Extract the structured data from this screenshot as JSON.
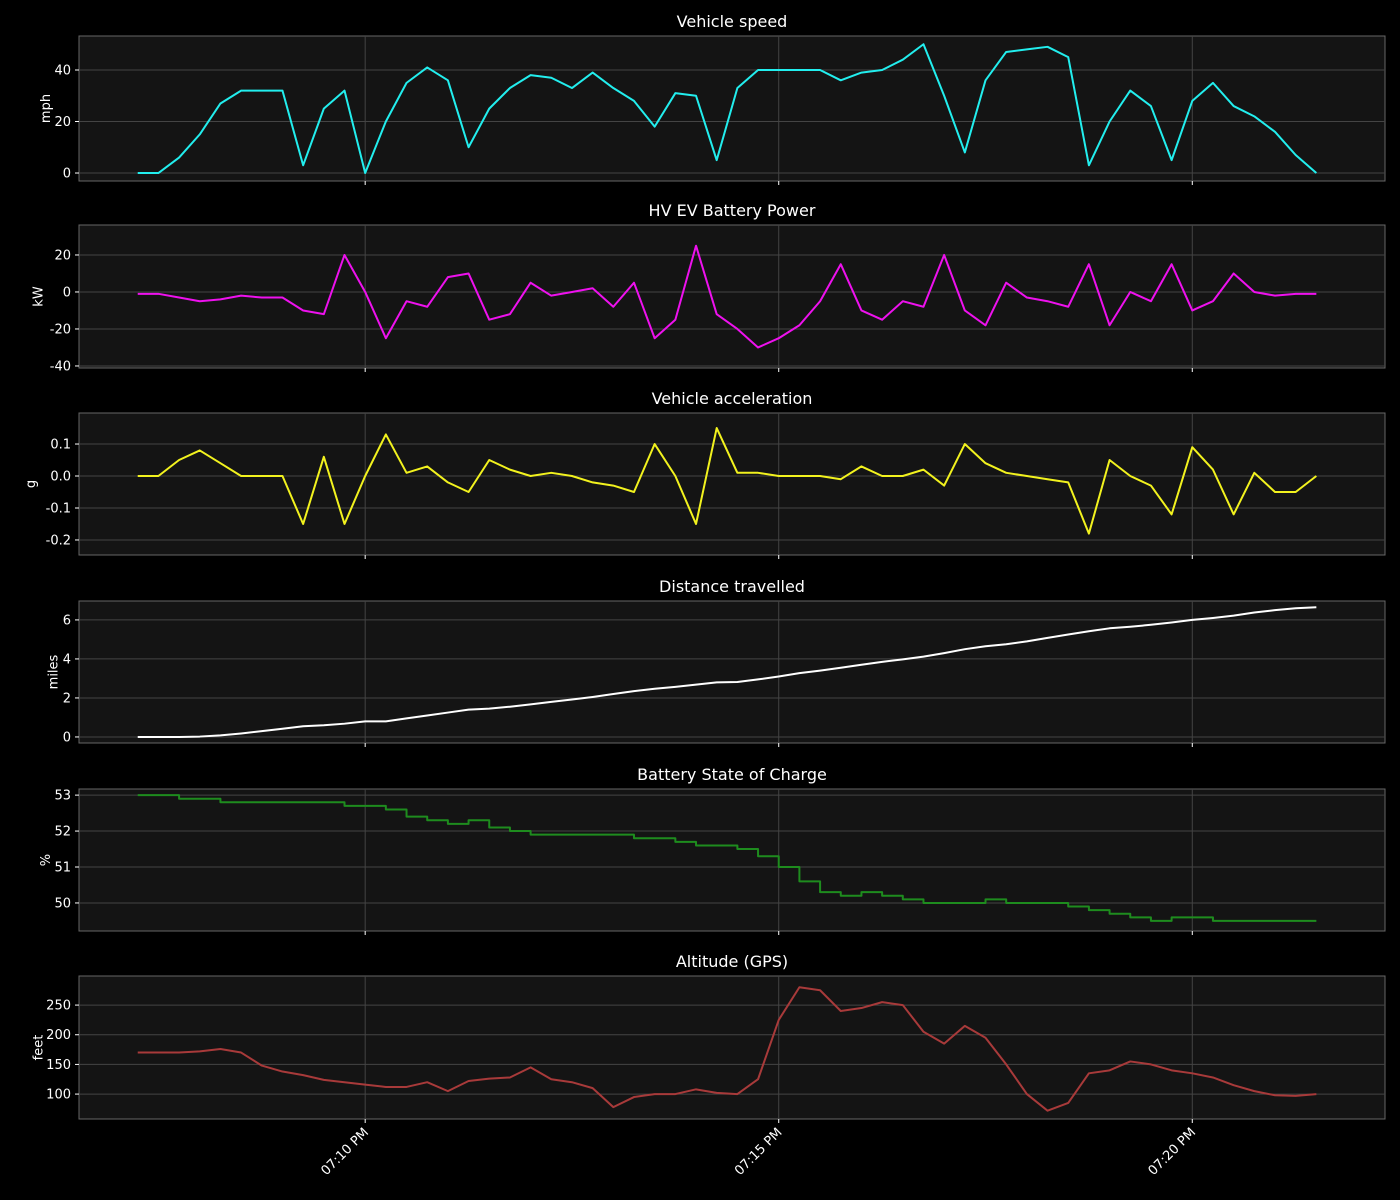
{
  "chart_data": [
    {
      "type": "line",
      "title": "Vehicle speed",
      "ylabel": "mph",
      "color": "#22eeee",
      "grid": true,
      "x": [
        7.25,
        7.5,
        7.75,
        8,
        8.25,
        8.5,
        8.75,
        9,
        9.25,
        9.5,
        9.75,
        10,
        10.25,
        10.5,
        10.75,
        11,
        11.25,
        11.5,
        11.75,
        12,
        12.25,
        12.5,
        12.75,
        13,
        13.25,
        13.5,
        13.75,
        14,
        14.25,
        14.5,
        14.75,
        15,
        15.25,
        15.5,
        15.75,
        16,
        16.25,
        16.5,
        16.75,
        17,
        17.25,
        17.5,
        17.75,
        18,
        18.25,
        18.5,
        18.75,
        19,
        19.25,
        19.5,
        19.75,
        20,
        20.25,
        20.5,
        20.75,
        21,
        21.25,
        21.5
      ],
      "values": [
        0,
        0,
        6,
        15,
        27,
        32,
        32,
        32,
        3,
        25,
        32,
        0,
        20,
        35,
        41,
        36,
        10,
        25,
        33,
        38,
        37,
        33,
        39,
        33,
        28,
        18,
        31,
        30,
        5,
        33,
        40,
        40,
        40,
        40,
        36,
        39,
        40,
        44,
        50,
        30,
        8,
        36,
        47,
        48,
        49,
        45,
        3,
        20,
        32,
        26,
        5,
        28,
        35,
        26,
        22,
        16,
        7,
        0
      ],
      "xlim": [
        6.54,
        22.33
      ],
      "ylim": [
        -3.1,
        53.2
      ],
      "yticks": [
        0,
        20,
        40
      ]
    },
    {
      "type": "line",
      "title": "HV EV Battery Power",
      "ylabel": "kW",
      "color": "#ee11ee",
      "grid": true,
      "x": [
        7.25,
        7.5,
        7.75,
        8,
        8.25,
        8.5,
        8.75,
        9,
        9.25,
        9.5,
        9.75,
        10,
        10.25,
        10.5,
        10.75,
        11,
        11.25,
        11.5,
        11.75,
        12,
        12.25,
        12.5,
        12.75,
        13,
        13.25,
        13.5,
        13.75,
        14,
        14.25,
        14.5,
        14.75,
        15,
        15.25,
        15.5,
        15.75,
        16,
        16.25,
        16.5,
        16.75,
        17,
        17.25,
        17.5,
        17.75,
        18,
        18.25,
        18.5,
        18.75,
        19,
        19.25,
        19.5,
        19.75,
        20,
        20.25,
        20.5,
        20.75,
        21,
        21.25,
        21.5
      ],
      "values": [
        -1,
        -1,
        -3,
        -5,
        -4,
        -2,
        -3,
        -3,
        -10,
        -12,
        20,
        0,
        -25,
        -5,
        -8,
        8,
        10,
        -15,
        -12,
        5,
        -2,
        0,
        2,
        -8,
        5,
        -25,
        -15,
        25,
        -12,
        -20,
        -30,
        -25,
        -18,
        -5,
        15,
        -10,
        -15,
        -5,
        -8,
        20,
        -10,
        -18,
        5,
        -3,
        -5,
        -8,
        15,
        -18,
        0,
        -5,
        15,
        -10,
        -5,
        10,
        0,
        -2,
        -1,
        -1
      ],
      "xlim": [
        6.54,
        22.33
      ],
      "ylim": [
        -41.1,
        36.2
      ],
      "yticks": [
        -40,
        -20,
        0,
        20
      ]
    },
    {
      "type": "line",
      "title": "Vehicle acceleration",
      "ylabel": "g",
      "color": "#f2f21e",
      "grid": true,
      "x": [
        7.25,
        7.5,
        7.75,
        8,
        8.25,
        8.5,
        8.75,
        9,
        9.25,
        9.5,
        9.75,
        10,
        10.25,
        10.5,
        10.75,
        11,
        11.25,
        11.5,
        11.75,
        12,
        12.25,
        12.5,
        12.75,
        13,
        13.25,
        13.5,
        13.75,
        14,
        14.25,
        14.5,
        14.75,
        15,
        15.25,
        15.5,
        15.75,
        16,
        16.25,
        16.5,
        16.75,
        17,
        17.25,
        17.5,
        17.75,
        18,
        18.25,
        18.5,
        18.75,
        19,
        19.25,
        19.5,
        19.75,
        20,
        20.25,
        20.5,
        20.75,
        21,
        21.25,
        21.5
      ],
      "values": [
        0,
        0,
        0.05,
        0.08,
        0.04,
        0,
        0,
        0,
        -0.15,
        0.06,
        -0.15,
        0,
        0.13,
        0.01,
        0.03,
        -0.02,
        -0.05,
        0.05,
        0.02,
        0,
        0.01,
        0,
        -0.02,
        -0.03,
        -0.05,
        0.1,
        0,
        -0.15,
        0.15,
        0.01,
        0.01,
        0,
        0,
        0,
        -0.01,
        0.03,
        0,
        0,
        0.02,
        -0.03,
        0.1,
        0.04,
        0.01,
        0,
        -0.01,
        -0.02,
        -0.18,
        0.05,
        0,
        -0.03,
        -0.12,
        0.09,
        0.02,
        -0.12,
        0.01,
        -0.05,
        -0.05,
        0
      ],
      "xlim": [
        6.54,
        22.33
      ],
      "ylim": [
        -0.247,
        0.197
      ],
      "yticks": [
        -0.2,
        -0.1,
        {
          "value": 0,
          "label": "0.0"
        },
        0.1
      ]
    },
    {
      "type": "line",
      "title": "Distance travelled",
      "ylabel": "miles",
      "color": "#ffffff",
      "grid": true,
      "x": [
        7.25,
        7.5,
        7.75,
        8,
        8.25,
        8.5,
        8.75,
        9,
        9.25,
        9.5,
        9.75,
        10,
        10.25,
        10.5,
        10.75,
        11,
        11.25,
        11.5,
        11.75,
        12,
        12.25,
        12.5,
        12.75,
        13,
        13.25,
        13.5,
        13.75,
        14,
        14.25,
        14.5,
        14.75,
        15,
        15.25,
        15.5,
        15.75,
        16,
        16.25,
        16.5,
        16.75,
        17,
        17.25,
        17.5,
        17.75,
        18,
        18.25,
        18.5,
        18.75,
        19,
        19.25,
        19.5,
        19.75,
        20,
        20.25,
        20.5,
        20.75,
        21,
        21.25,
        21.5
      ],
      "values": [
        0,
        0,
        0,
        0.02,
        0.08,
        0.18,
        0.3,
        0.42,
        0.55,
        0.6,
        0.68,
        0.8,
        0.8,
        0.95,
        1.1,
        1.25,
        1.4,
        1.45,
        1.55,
        1.67,
        1.8,
        1.92,
        2.05,
        2.2,
        2.35,
        2.47,
        2.57,
        2.68,
        2.8,
        2.82,
        2.95,
        3.1,
        3.27,
        3.4,
        3.55,
        3.7,
        3.85,
        3.98,
        4.12,
        4.3,
        4.5,
        4.65,
        4.75,
        4.9,
        5.08,
        5.25,
        5.42,
        5.57,
        5.65,
        5.75,
        5.87,
        6.0,
        6.1,
        6.22,
        6.38,
        6.5,
        6.6,
        6.65
      ],
      "xlim": [
        6.54,
        22.33
      ],
      "ylim": [
        -0.31,
        6.97
      ],
      "yticks": [
        0,
        2,
        4,
        6
      ]
    },
    {
      "type": "step",
      "title": "Battery State of Charge",
      "ylabel": "%",
      "color": "#1e8c1e",
      "grid": true,
      "x": [
        7.25,
        7.5,
        7.75,
        8,
        8.25,
        8.5,
        8.75,
        9,
        9.25,
        9.5,
        9.75,
        10,
        10.25,
        10.5,
        10.75,
        11,
        11.25,
        11.5,
        11.75,
        12,
        12.25,
        12.5,
        12.75,
        13,
        13.25,
        13.5,
        13.75,
        14,
        14.25,
        14.5,
        14.75,
        15,
        15.25,
        15.5,
        15.75,
        16,
        16.25,
        16.5,
        16.75,
        17,
        17.25,
        17.5,
        17.75,
        18,
        18.25,
        18.5,
        18.75,
        19,
        19.25,
        19.5,
        19.75,
        20,
        20.25,
        20.5,
        20.75,
        21,
        21.25,
        21.5
      ],
      "values": [
        53,
        53,
        52.9,
        52.9,
        52.8,
        52.8,
        52.8,
        52.8,
        52.8,
        52.8,
        52.7,
        52.7,
        52.6,
        52.4,
        52.3,
        52.2,
        52.3,
        52.1,
        52,
        51.9,
        51.9,
        51.9,
        51.9,
        51.9,
        51.8,
        51.8,
        51.7,
        51.6,
        51.6,
        51.5,
        51.3,
        51,
        50.6,
        50.3,
        50.2,
        50.3,
        50.2,
        50.1,
        50,
        50,
        50,
        50.1,
        50,
        50,
        50,
        49.9,
        49.8,
        49.7,
        49.6,
        49.5,
        49.6,
        49.6,
        49.5,
        49.5,
        49.5,
        49.5,
        49.5,
        49.5
      ],
      "xlim": [
        6.54,
        22.33
      ],
      "ylim": [
        49.22,
        53.17
      ],
      "yticks": [
        50,
        51,
        52,
        53
      ]
    },
    {
      "type": "line",
      "title": "Altitude (GPS)",
      "ylabel": "feet",
      "color": "#a83a3a",
      "grid": true,
      "x": [
        7.25,
        7.5,
        7.75,
        8,
        8.25,
        8.5,
        8.75,
        9,
        9.25,
        9.5,
        9.75,
        10,
        10.25,
        10.5,
        10.75,
        11,
        11.25,
        11.5,
        11.75,
        12,
        12.25,
        12.5,
        12.75,
        13,
        13.25,
        13.5,
        13.75,
        14,
        14.25,
        14.5,
        14.75,
        15,
        15.25,
        15.5,
        15.75,
        16,
        16.25,
        16.5,
        16.75,
        17,
        17.25,
        17.5,
        17.75,
        18,
        18.25,
        18.5,
        18.75,
        19,
        19.25,
        19.5,
        19.75,
        20,
        20.25,
        20.5,
        20.75,
        21,
        21.25,
        21.5
      ],
      "values": [
        170,
        170,
        170,
        172,
        176,
        170,
        148,
        138,
        132,
        124,
        120,
        116,
        112,
        112,
        120,
        105,
        122,
        126,
        128,
        145,
        125,
        120,
        110,
        78,
        95,
        100,
        100,
        108,
        102,
        100,
        125,
        225,
        280,
        275,
        240,
        245,
        255,
        250,
        205,
        185,
        215,
        195,
        150,
        100,
        72,
        85,
        135,
        140,
        155,
        150,
        140,
        135,
        128,
        115,
        105,
        98,
        97,
        100
      ],
      "xlim": [
        6.54,
        22.33
      ],
      "ylim": [
        58,
        299
      ],
      "yticks": [
        100,
        150,
        200,
        250
      ],
      "xticks": [
        {
          "value": 10,
          "label": "07:10 PM"
        },
        {
          "value": 15,
          "label": "07:15 PM"
        },
        {
          "value": 20,
          "label": "07:20 PM"
        }
      ]
    }
  ]
}
